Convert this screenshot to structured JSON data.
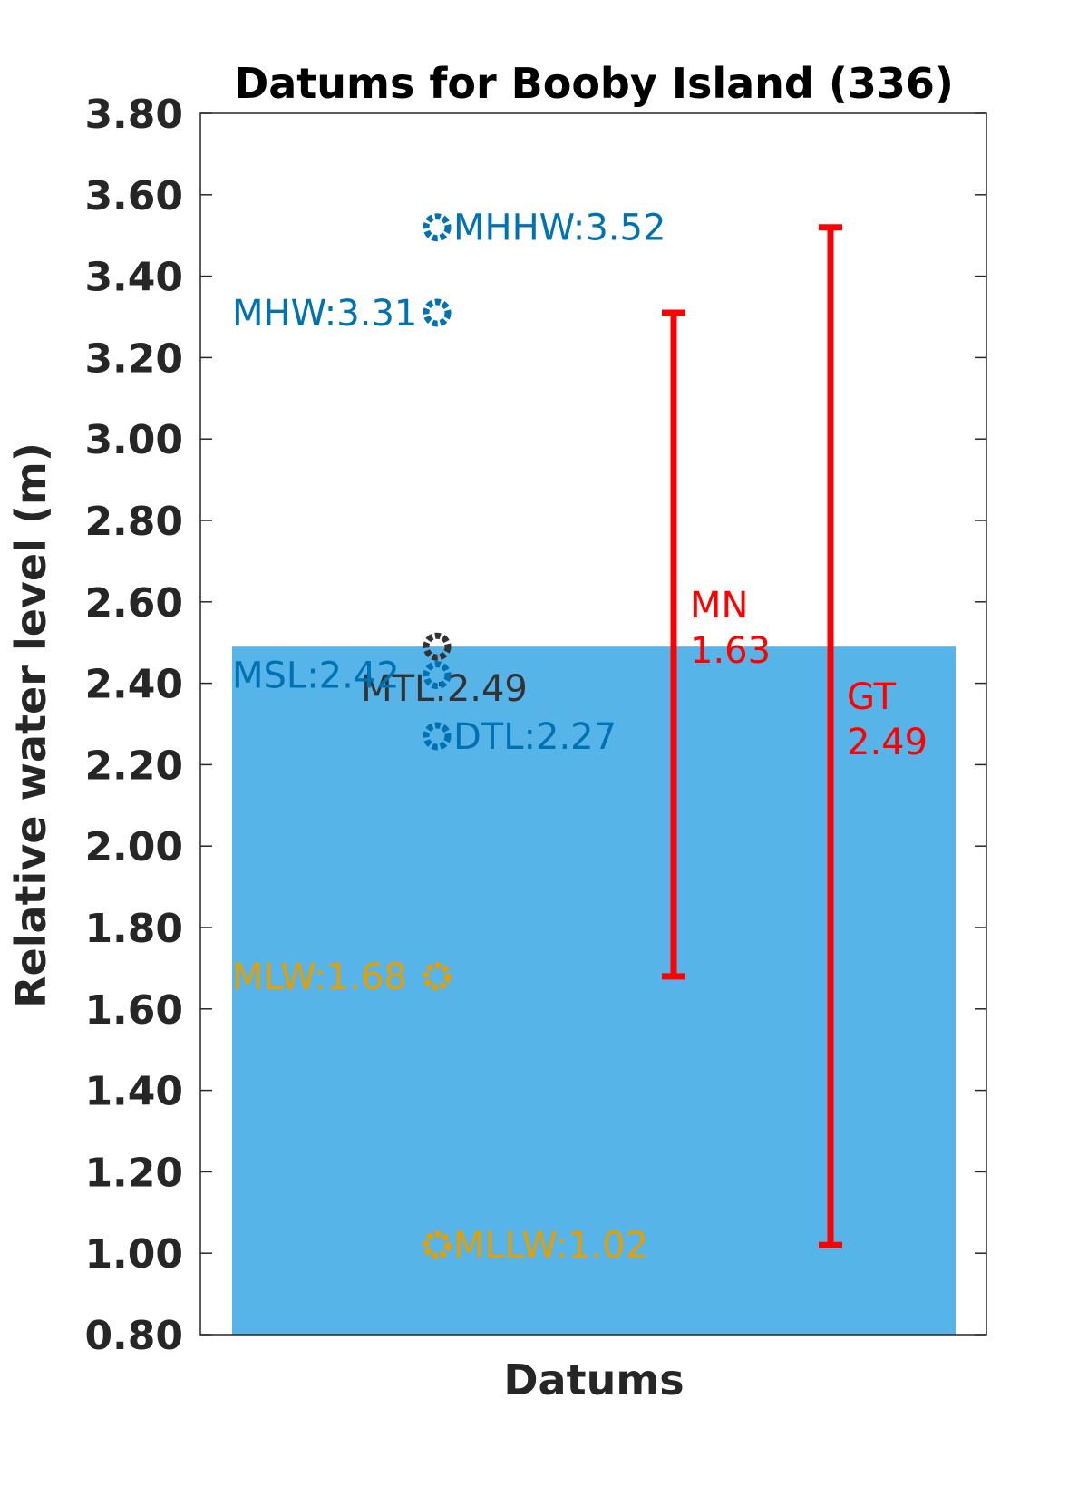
{
  "chart_data": {
    "type": "bar",
    "title": "Datums for Booby Island (336)",
    "xlabel": "Datums",
    "ylabel": "Relative water level (m)",
    "ylim": [
      0.8,
      3.8
    ],
    "yticks": [
      "0.80",
      "1.00",
      "1.20",
      "1.40",
      "1.60",
      "1.80",
      "2.00",
      "2.20",
      "2.40",
      "2.60",
      "2.80",
      "3.00",
      "3.20",
      "3.40",
      "3.60",
      "3.80"
    ],
    "bar": {
      "value": 2.49,
      "color": "#56b4e9"
    },
    "datums": [
      {
        "name": "MHHW",
        "value": 3.52,
        "label": "MHHW:3.52",
        "color": "#0072b2",
        "side": "right"
      },
      {
        "name": "MHW",
        "value": 3.31,
        "label": "MHW:3.31",
        "color": "#0072b2",
        "side": "left"
      },
      {
        "name": "MTL",
        "value": 2.49,
        "label": "MTL:2.49",
        "color": "#333333",
        "side": "center"
      },
      {
        "name": "MSL",
        "value": 2.42,
        "label": "MSL:2.42",
        "color": "#0072b2",
        "side": "left"
      },
      {
        "name": "DTL",
        "value": 2.27,
        "label": "DTL:2.27",
        "color": "#0072b2",
        "side": "right"
      },
      {
        "name": "MLW",
        "value": 1.68,
        "label": "MLW:1.68",
        "color": "#e69f00",
        "side": "left"
      },
      {
        "name": "MLLW",
        "value": 1.02,
        "label": "MLLW:1.02",
        "color": "#e69f00",
        "side": "right"
      }
    ],
    "ranges": [
      {
        "name": "MN",
        "low": 1.68,
        "high": 3.31,
        "label_name": "MN",
        "label_value": "1.63",
        "color": "#ff0000"
      },
      {
        "name": "GT",
        "low": 1.02,
        "high": 3.52,
        "label_name": "GT",
        "label_value": "2.49",
        "color": "#ff0000"
      }
    ],
    "grid": false,
    "legend": "none"
  }
}
